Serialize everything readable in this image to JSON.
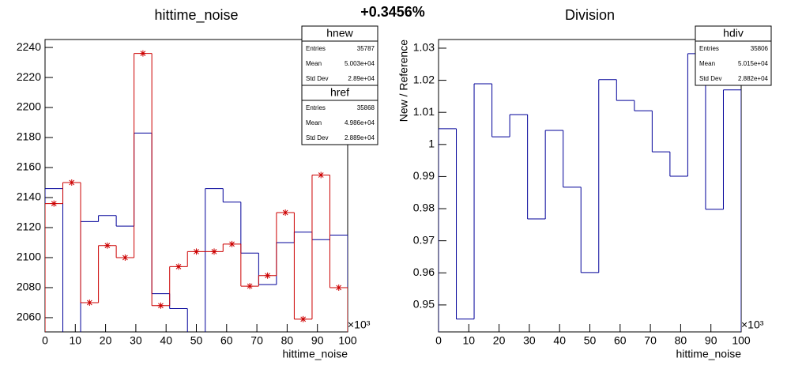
{
  "header": {
    "title": "+0.3456%"
  },
  "chart_data": [
    {
      "type": "histogram",
      "title": "hittime_noise",
      "x_label": "hittime_noise",
      "x_exponent": "×10³",
      "bins": [
        0,
        5.88,
        11.76,
        17.65,
        23.53,
        29.41,
        35.29,
        41.18,
        47.06,
        52.94,
        58.82,
        64.71,
        70.59,
        76.47,
        82.35,
        88.24,
        94.12,
        100
      ],
      "xlim": [
        0,
        100
      ],
      "xticks": [
        0,
        10,
        20,
        30,
        40,
        50,
        60,
        70,
        80,
        90,
        100
      ],
      "ylim": [
        2050.5,
        2245.3
      ],
      "yticks": [
        2060,
        2080,
        2100,
        2120,
        2140,
        2160,
        2180,
        2200,
        2220,
        2240
      ],
      "series": [
        {
          "name": "hnew",
          "color": "#000099",
          "marker": "none",
          "values": [
            2146,
            2045,
            2124,
            2128,
            2121,
            2183,
            2076,
            2066,
            2045,
            2146,
            2137,
            2103,
            2082,
            2110,
            2117,
            2112,
            2115
          ],
          "stats": [
            [
              "Entries",
              "35787"
            ],
            [
              "Mean",
              "5.003e+04"
            ],
            [
              "Std Dev",
              "2.89e+04"
            ]
          ]
        },
        {
          "name": "href",
          "color": "#cc0000",
          "marker": "star",
          "values": [
            2136,
            2150,
            2070,
            2108,
            2100,
            2236,
            2068,
            2094,
            2104,
            2104,
            2109,
            2081,
            2088,
            2130,
            2059,
            2155,
            2080
          ],
          "stats": [
            [
              "Entries",
              "35868"
            ],
            [
              "Mean",
              "4.986e+04"
            ],
            [
              "Std Dev",
              "2.889e+04"
            ]
          ]
        }
      ]
    },
    {
      "type": "histogram",
      "title": "Division",
      "x_label": "hittime_noise",
      "y_label": "New / Reference",
      "x_exponent": "×10³",
      "bins": [
        0,
        5.88,
        11.76,
        17.65,
        23.53,
        29.41,
        35.29,
        41.18,
        47.06,
        52.94,
        58.82,
        64.71,
        70.59,
        76.47,
        82.35,
        88.24,
        94.12,
        100
      ],
      "xlim": [
        0,
        100
      ],
      "xticks": [
        0,
        10,
        20,
        30,
        40,
        50,
        60,
        70,
        80,
        90,
        100
      ],
      "ylim": [
        0.9416,
        1.0327
      ],
      "yticks": [
        0.95,
        0.96,
        0.97,
        0.98,
        0.99,
        1,
        1.01,
        1.02,
        1.03
      ],
      "series": [
        {
          "name": "hdiv",
          "color": "#000099",
          "marker": "none",
          "values": [
            1.0049,
            0.9456,
            1.0189,
            1.0024,
            1.0093,
            0.9768,
            1.0044,
            0.9867,
            0.9601,
            1.0202,
            1.0137,
            1.0105,
            0.9977,
            0.9901,
            1.0283,
            0.9798,
            1.017
          ],
          "stats": [
            [
              "Entries",
              "35806"
            ],
            [
              "Mean",
              "5.015e+04"
            ],
            [
              "Std Dev",
              "2.882e+04"
            ]
          ]
        }
      ]
    }
  ]
}
